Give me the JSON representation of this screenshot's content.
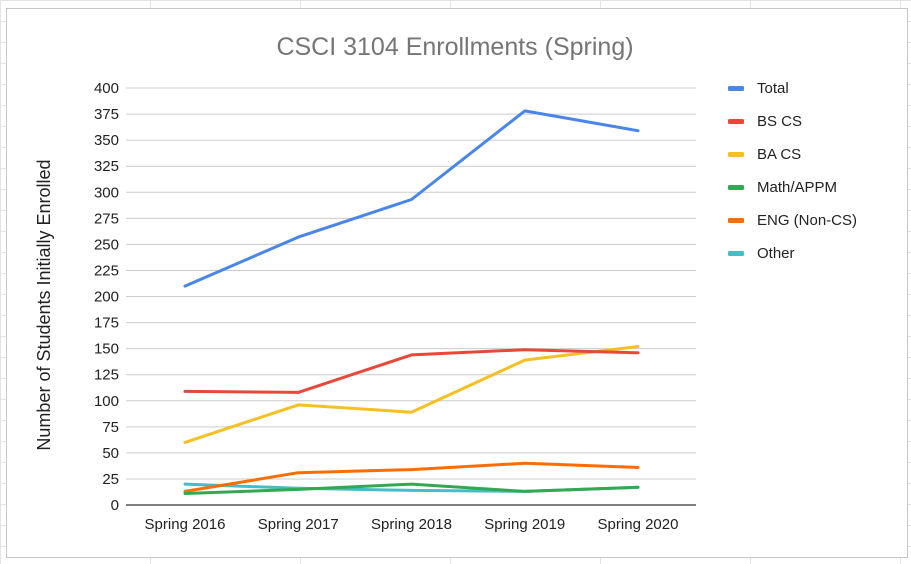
{
  "chart_data": {
    "type": "line",
    "title": "CSCI 3104 Enrollments (Spring)",
    "xlabel": "",
    "ylabel": "Number of Students Initially Enrolled",
    "categories": [
      "Spring 2016",
      "Spring 2017",
      "Spring 2018",
      "Spring 2019",
      "Spring 2020"
    ],
    "ylim": [
      0,
      400
    ],
    "yticks": [
      "0",
      "25",
      "50",
      "75",
      "100",
      "125",
      "150",
      "175",
      "200",
      "225",
      "250",
      "275",
      "300",
      "325",
      "350",
      "375",
      "400"
    ],
    "grid": true,
    "legend_position": "right",
    "series": [
      {
        "name": "Total",
        "color": "#4a86e8",
        "values": [
          210,
          257,
          293,
          378,
          359
        ]
      },
      {
        "name": "BS CS",
        "color": "#e8483a",
        "values": [
          109,
          108,
          144,
          149,
          146
        ]
      },
      {
        "name": "BA CS",
        "color": "#f6c022",
        "values": [
          60,
          96,
          89,
          139,
          152
        ]
      },
      {
        "name": "Math/APPM",
        "color": "#33a853",
        "values": [
          11,
          15,
          20,
          13,
          17
        ]
      },
      {
        "name": "ENG (Non-CS)",
        "color": "#ff6d01",
        "values": [
          13,
          31,
          34,
          40,
          36
        ]
      },
      {
        "name": "Other",
        "color": "#46bdc6",
        "values": [
          20,
          16,
          14,
          13,
          17
        ]
      }
    ]
  }
}
